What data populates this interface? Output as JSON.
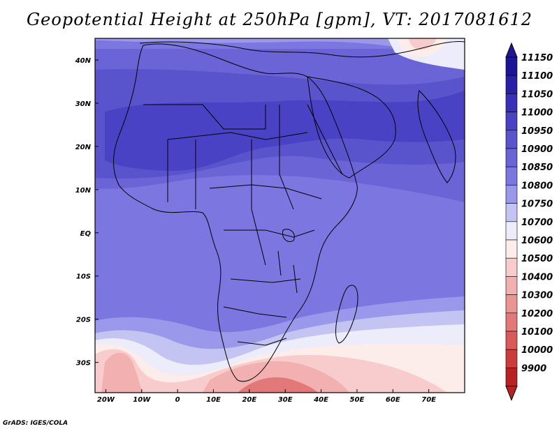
{
  "title": "Geopotential Height at 250hPa [gpm], VT: 2017081612",
  "credit": "GrADS: IGES/COLA",
  "map": {
    "lon_range": [
      -23,
      80
    ],
    "lat_range": [
      -37,
      45
    ],
    "lon_ticks": [
      {
        "value": -20,
        "label": "20W"
      },
      {
        "value": -10,
        "label": "10W"
      },
      {
        "value": 0,
        "label": "0"
      },
      {
        "value": 10,
        "label": "10E"
      },
      {
        "value": 20,
        "label": "20E"
      },
      {
        "value": 30,
        "label": "30E"
      },
      {
        "value": 40,
        "label": "40E"
      },
      {
        "value": 50,
        "label": "50E"
      },
      {
        "value": 60,
        "label": "60E"
      },
      {
        "value": 70,
        "label": "70E"
      }
    ],
    "lat_ticks": [
      {
        "value": 40,
        "label": "40N"
      },
      {
        "value": 30,
        "label": "30N"
      },
      {
        "value": 20,
        "label": "20N"
      },
      {
        "value": 10,
        "label": "10N"
      },
      {
        "value": 0,
        "label": "EQ"
      },
      {
        "value": -10,
        "label": "10S"
      },
      {
        "value": -20,
        "label": "20S"
      },
      {
        "value": -30,
        "label": "30S"
      }
    ]
  },
  "colorbar": {
    "levels": [
      {
        "label": "11150",
        "color": "#1e1496"
      },
      {
        "label": "11100",
        "color": "#2a20a8"
      },
      {
        "label": "11050",
        "color": "#3a30b8"
      },
      {
        "label": "11000",
        "color": "#4a42c4"
      },
      {
        "label": "10950",
        "color": "#5a54cc"
      },
      {
        "label": "10900",
        "color": "#6a64d6"
      },
      {
        "label": "10850",
        "color": "#7b76e0"
      },
      {
        "label": "10800",
        "color": "#9a98ea"
      },
      {
        "label": "10750",
        "color": "#c4c4f2"
      },
      {
        "label": "10700",
        "color": "#ececfa"
      },
      {
        "label": "10600",
        "color": "#fcecea"
      },
      {
        "label": "10500",
        "color": "#f8cccc"
      },
      {
        "label": "10400",
        "color": "#f2b0b0"
      },
      {
        "label": "10300",
        "color": "#ea9494"
      },
      {
        "label": "10200",
        "color": "#e27878"
      },
      {
        "label": "10100",
        "color": "#da5a5a"
      },
      {
        "label": "10000",
        "color": "#cc3c3c"
      },
      {
        "label": "9900",
        "color": "#b82222"
      }
    ],
    "top_arrow_color": "#1e1496",
    "bottom_arrow_color": "#b82222"
  },
  "field": {
    "bands": [
      {
        "color": "#7b76e0",
        "description_level": "10850"
      },
      {
        "color": "#6a64d6",
        "description_level": "10900"
      },
      {
        "color": "#5a54cc",
        "description_level": "10950"
      },
      {
        "color": "#4a42c4",
        "description_level": "11000"
      },
      {
        "color": "#9a98ea",
        "description_level": "10800"
      },
      {
        "color": "#c4c4f2",
        "description_level": "10750"
      },
      {
        "color": "#ececfa",
        "description_level": "10700"
      },
      {
        "color": "#fcecea",
        "description_level": "10600"
      },
      {
        "color": "#f8cccc",
        "description_level": "10500"
      },
      {
        "color": "#f2b0b0",
        "description_level": "10400"
      },
      {
        "color": "#e27878",
        "description_level": "10200"
      }
    ]
  }
}
